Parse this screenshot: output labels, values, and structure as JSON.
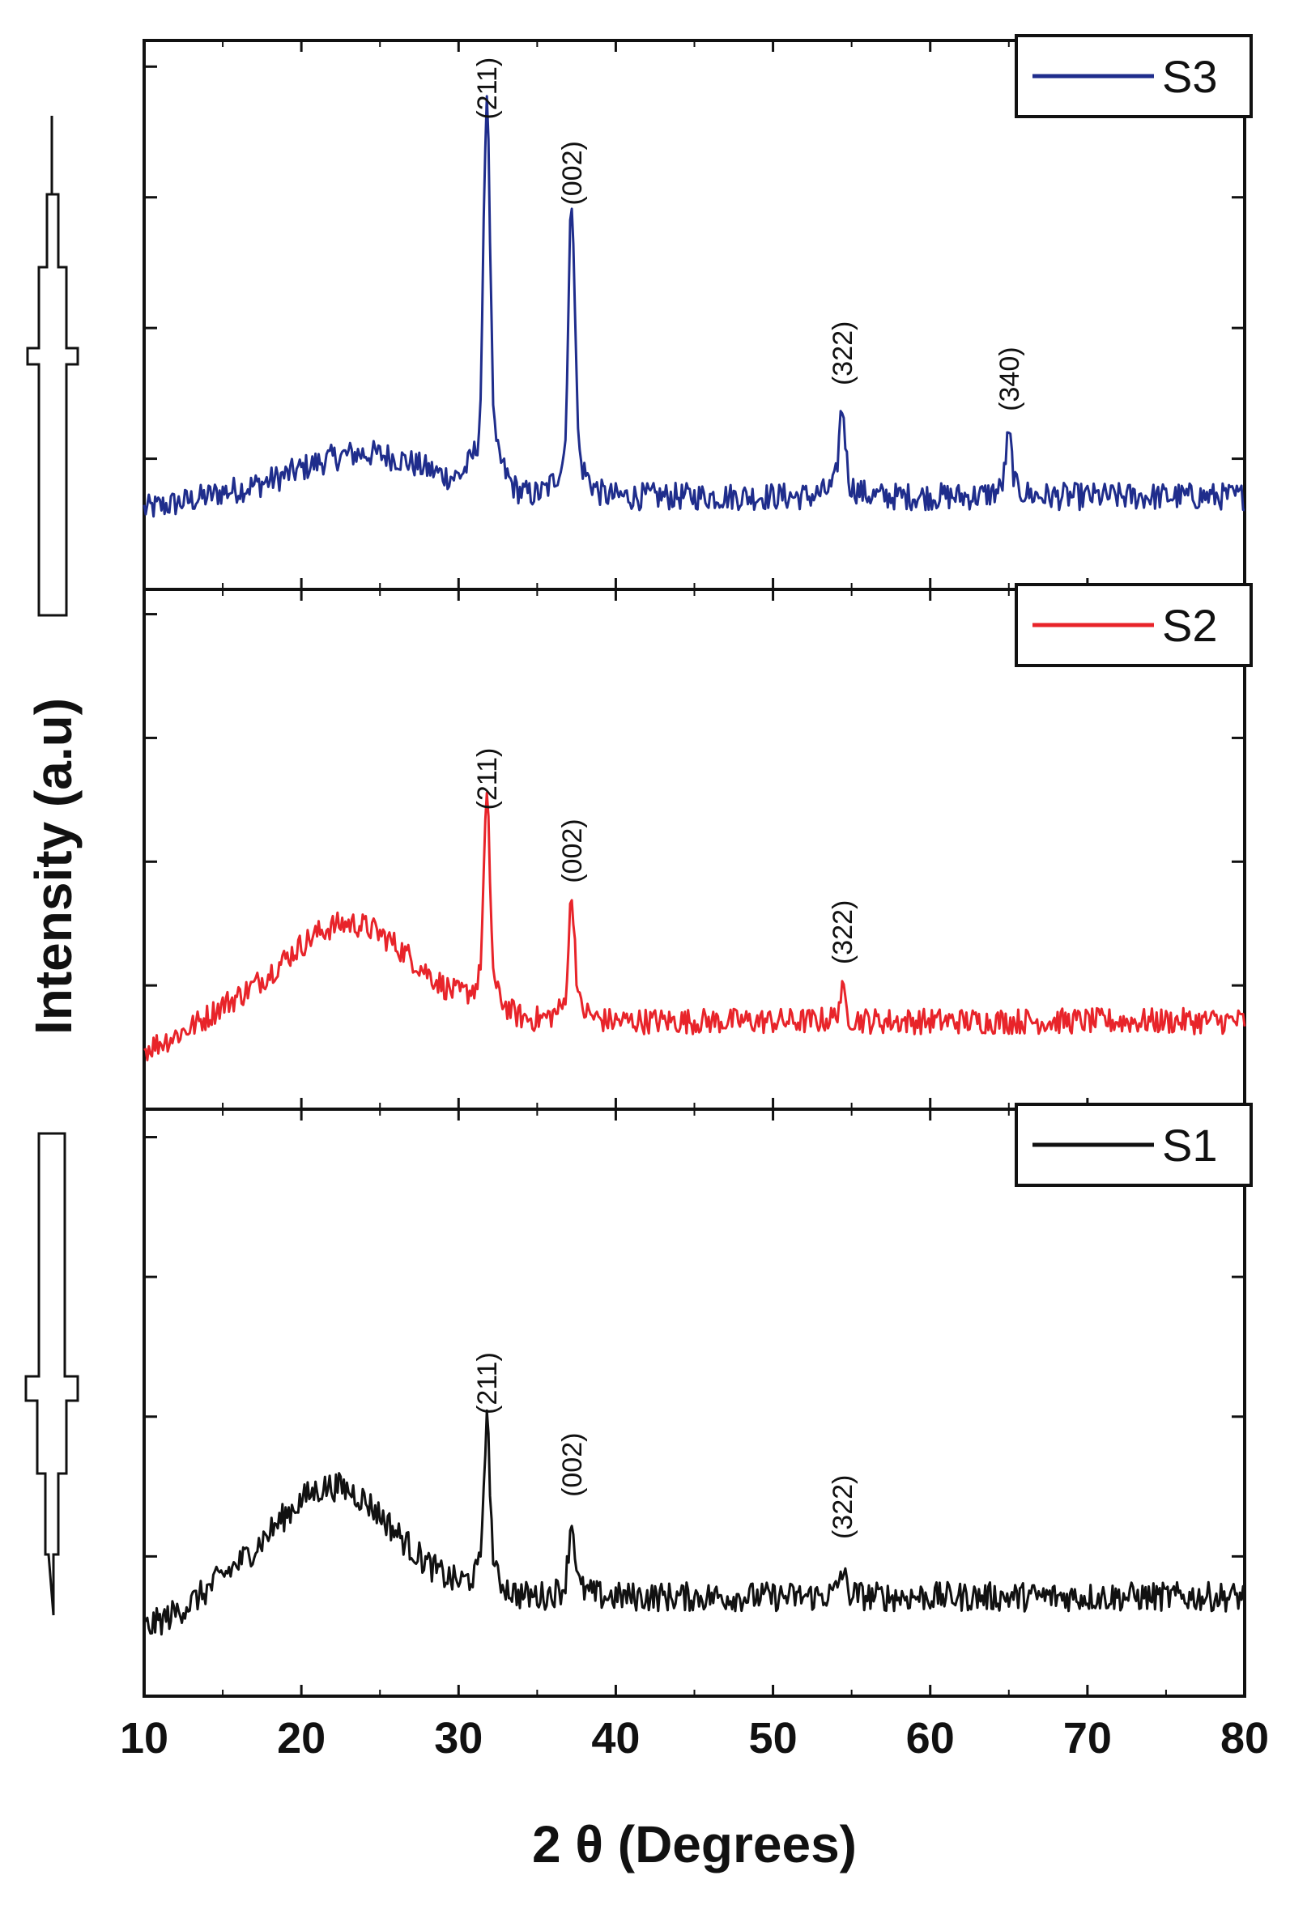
{
  "chart_data": {
    "type": "line",
    "xlabel": "2 θ (Degrees)",
    "ylabel": "Intensity (a.u)",
    "xlim": [
      10,
      80
    ],
    "xticks": [
      10,
      20,
      30,
      40,
      50,
      60,
      70,
      80
    ],
    "grid": false,
    "panels": [
      {
        "name": "S3",
        "color": "#1f2d8c",
        "legend_position": "top-right",
        "background": 0.35,
        "hump": {
          "center": 24,
          "width": 6,
          "height": 0.25
        },
        "peaks": [
          {
            "x": 31.8,
            "height": 2.0,
            "label": "(211)"
          },
          {
            "x": 37.2,
            "height": 1.5,
            "label": "(002)"
          },
          {
            "x": 54.4,
            "height": 0.45,
            "label": "(322)"
          },
          {
            "x": 65.0,
            "height": 0.3,
            "label": "(340)"
          }
        ]
      },
      {
        "name": "S2",
        "color": "#e8242a",
        "legend_position": "top-right",
        "background": 0.35,
        "hump": {
          "center": 23,
          "width": 6,
          "height": 0.6
        },
        "peaks": [
          {
            "x": 31.8,
            "height": 1.1,
            "label": "(211)"
          },
          {
            "x": 37.2,
            "height": 0.65,
            "label": "(002)"
          },
          {
            "x": 54.4,
            "height": 0.15,
            "label": "(322)"
          }
        ]
      },
      {
        "name": "S1",
        "color": "#111111",
        "legend_position": "top-right",
        "background": 0.35,
        "hump": {
          "center": 22,
          "width": 5.5,
          "height": 0.6
        },
        "peaks": [
          {
            "x": 31.8,
            "height": 0.8,
            "label": "(211)"
          },
          {
            "x": 37.2,
            "height": 0.35,
            "label": "(002)"
          },
          {
            "x": 54.4,
            "height": 0.12,
            "label": "(322)"
          }
        ]
      }
    ],
    "side_arrows": [
      "up",
      "down"
    ]
  }
}
